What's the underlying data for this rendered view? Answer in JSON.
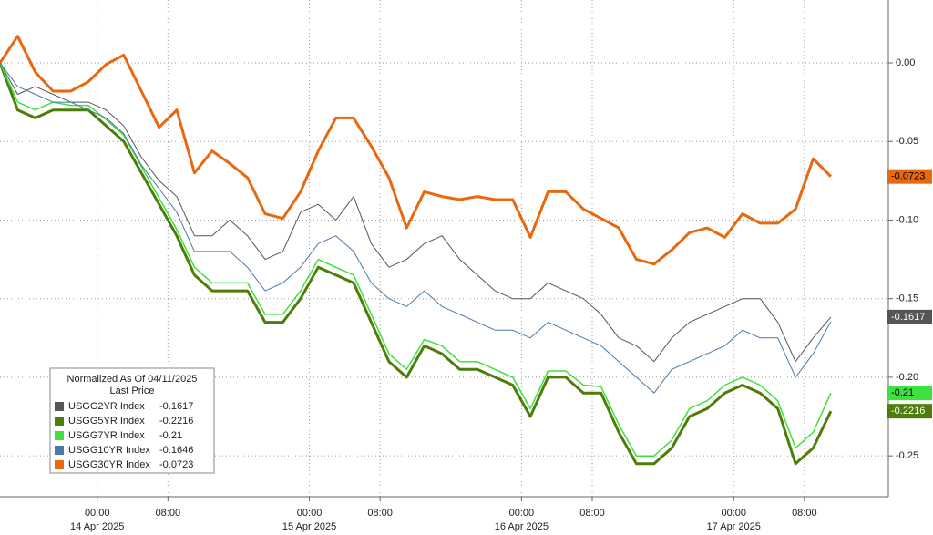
{
  "chart_data": {
    "type": "line",
    "legend_title": "Normalized As Of 04/11/2025",
    "legend_subtitle": "Last Price",
    "x": [
      -11,
      -9,
      -7,
      -5,
      -3,
      -1,
      1,
      3,
      5,
      7,
      9,
      11,
      13,
      15,
      17,
      19,
      21,
      23,
      25,
      27,
      29,
      31,
      33,
      35,
      37,
      39,
      41,
      43,
      45,
      47,
      49,
      51,
      53,
      55,
      57,
      59,
      61,
      63,
      65,
      67,
      69,
      71,
      73,
      75,
      77,
      79,
      81,
      83
    ],
    "series": [
      {
        "name": "USGG2YR Index",
        "color": "#555555",
        "text_color": "#ffffff",
        "width": 1,
        "last_value": -0.1617,
        "values": [
          0,
          -0.02,
          -0.015,
          -0.02,
          -0.025,
          -0.025,
          -0.03,
          -0.04,
          -0.06,
          -0.075,
          -0.085,
          -0.11,
          -0.11,
          -0.1,
          -0.11,
          -0.125,
          -0.12,
          -0.095,
          -0.09,
          -0.1,
          -0.085,
          -0.115,
          -0.13,
          -0.125,
          -0.115,
          -0.11,
          -0.125,
          -0.135,
          -0.145,
          -0.15,
          -0.15,
          -0.14,
          -0.145,
          -0.15,
          -0.16,
          -0.175,
          -0.18,
          -0.19,
          -0.175,
          -0.165,
          -0.16,
          -0.155,
          -0.15,
          -0.15,
          -0.165,
          -0.19,
          -0.175,
          -0.1617
        ]
      },
      {
        "name": "USGG5YR Index",
        "color": "#4f7d0a",
        "text_color": "#ffffff",
        "width": 3,
        "last_value": -0.2216,
        "values": [
          0,
          -0.03,
          -0.035,
          -0.03,
          -0.03,
          -0.03,
          -0.04,
          -0.05,
          -0.07,
          -0.09,
          -0.11,
          -0.135,
          -0.145,
          -0.145,
          -0.145,
          -0.165,
          -0.165,
          -0.15,
          -0.13,
          -0.135,
          -0.14,
          -0.165,
          -0.19,
          -0.2,
          -0.18,
          -0.185,
          -0.195,
          -0.195,
          -0.2,
          -0.205,
          -0.225,
          -0.2,
          -0.2,
          -0.21,
          -0.21,
          -0.235,
          -0.255,
          -0.255,
          -0.245,
          -0.225,
          -0.22,
          -0.21,
          -0.205,
          -0.21,
          -0.22,
          -0.255,
          -0.245,
          -0.2216
        ]
      },
      {
        "name": "USGG7YR Index",
        "color": "#3fe03f",
        "text_color": "#000000",
        "width": 1.5,
        "last_value": -0.21,
        "values": [
          0,
          -0.025,
          -0.03,
          -0.025,
          -0.027,
          -0.027,
          -0.036,
          -0.046,
          -0.066,
          -0.086,
          -0.106,
          -0.13,
          -0.14,
          -0.14,
          -0.14,
          -0.16,
          -0.16,
          -0.145,
          -0.125,
          -0.13,
          -0.135,
          -0.16,
          -0.185,
          -0.195,
          -0.176,
          -0.18,
          -0.19,
          -0.19,
          -0.195,
          -0.2,
          -0.22,
          -0.196,
          -0.196,
          -0.205,
          -0.206,
          -0.23,
          -0.25,
          -0.25,
          -0.24,
          -0.22,
          -0.215,
          -0.205,
          -0.2,
          -0.205,
          -0.215,
          -0.245,
          -0.235,
          -0.21
        ]
      },
      {
        "name": "USGG10YR Index",
        "color": "#4a78a6",
        "text_color": "#ffffff",
        "width": 1,
        "last_value": -0.1646,
        "values": [
          0,
          -0.015,
          -0.02,
          -0.025,
          -0.025,
          -0.03,
          -0.035,
          -0.045,
          -0.065,
          -0.08,
          -0.095,
          -0.12,
          -0.12,
          -0.12,
          -0.13,
          -0.145,
          -0.14,
          -0.13,
          -0.115,
          -0.11,
          -0.12,
          -0.14,
          -0.15,
          -0.155,
          -0.145,
          -0.155,
          -0.16,
          -0.165,
          -0.17,
          -0.17,
          -0.175,
          -0.165,
          -0.17,
          -0.175,
          -0.18,
          -0.19,
          -0.2,
          -0.21,
          -0.195,
          -0.19,
          -0.185,
          -0.18,
          -0.17,
          -0.175,
          -0.175,
          -0.2,
          -0.185,
          -0.1646
        ]
      },
      {
        "name": "USGG30YR Index",
        "color": "#e8680f",
        "text_color": "#000000",
        "width": 3,
        "last_value": -0.0723,
        "values": [
          0,
          0.017,
          -0.006,
          -0.018,
          -0.018,
          -0.012,
          -0.001,
          0.005,
          -0.018,
          -0.041,
          -0.03,
          -0.07,
          -0.056,
          -0.064,
          -0.073,
          -0.096,
          -0.099,
          -0.082,
          -0.056,
          -0.035,
          -0.035,
          -0.053,
          -0.073,
          -0.105,
          -0.082,
          -0.085,
          -0.087,
          -0.085,
          -0.087,
          -0.087,
          -0.111,
          -0.082,
          -0.082,
          -0.093,
          -0.099,
          -0.105,
          -0.125,
          -0.128,
          -0.119,
          -0.108,
          -0.105,
          -0.111,
          -0.096,
          -0.102,
          -0.102,
          -0.093,
          -0.061,
          -0.0723
        ]
      }
    ],
    "tags": [
      4,
      0,
      2,
      1
    ],
    "xlim": [
      -11,
      89.5
    ],
    "xticks": [
      {
        "value": 0,
        "label": "00:00"
      },
      {
        "value": 8,
        "label": "08:00"
      },
      {
        "value": 24,
        "label": "00:00"
      },
      {
        "value": 32,
        "label": "08:00"
      },
      {
        "value": 48,
        "label": "00:00"
      },
      {
        "value": 56,
        "label": "08:00"
      },
      {
        "value": 72,
        "label": "00:00"
      },
      {
        "value": 80,
        "label": "08:00"
      }
    ],
    "date_ticks": [
      {
        "value": 0,
        "label": "14 Apr 2025"
      },
      {
        "value": 24,
        "label": "15 Apr 2025"
      },
      {
        "value": 48,
        "label": "16 Apr 2025"
      },
      {
        "value": 72,
        "label": "17 Apr 2025"
      }
    ],
    "ylim": [
      -0.276,
      0.04
    ],
    "yticks": [
      {
        "value": 0,
        "label": "0.00"
      },
      -0.05,
      {
        "value": -0.1,
        "label": "-0.10"
      },
      -0.15,
      {
        "value": -0.2,
        "label": "-0.20"
      },
      -0.25
    ],
    "grid": true
  }
}
